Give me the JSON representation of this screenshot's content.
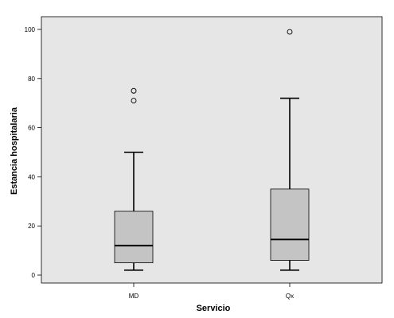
{
  "chart_data": {
    "type": "boxplot",
    "xlabel": "Servicio",
    "ylabel": "Estancia hospitalaria",
    "ylim": [
      0,
      100
    ],
    "yticks": [
      0,
      20,
      40,
      60,
      80,
      100
    ],
    "grid": false,
    "categories": [
      "MD",
      "Qx"
    ],
    "boxes": [
      {
        "category": "MD",
        "min": 2,
        "q1": 5,
        "median": 12,
        "q3": 26,
        "max": 50,
        "outliers": [
          71,
          75
        ]
      },
      {
        "category": "Qx",
        "min": 2,
        "q1": 6,
        "median": 14.5,
        "q3": 35,
        "max": 72,
        "outliers": [
          99
        ]
      }
    ],
    "colors": {
      "plot_background": "#e6e6e6",
      "box_fill": "#c4c4c4",
      "stroke": "#000000"
    }
  }
}
